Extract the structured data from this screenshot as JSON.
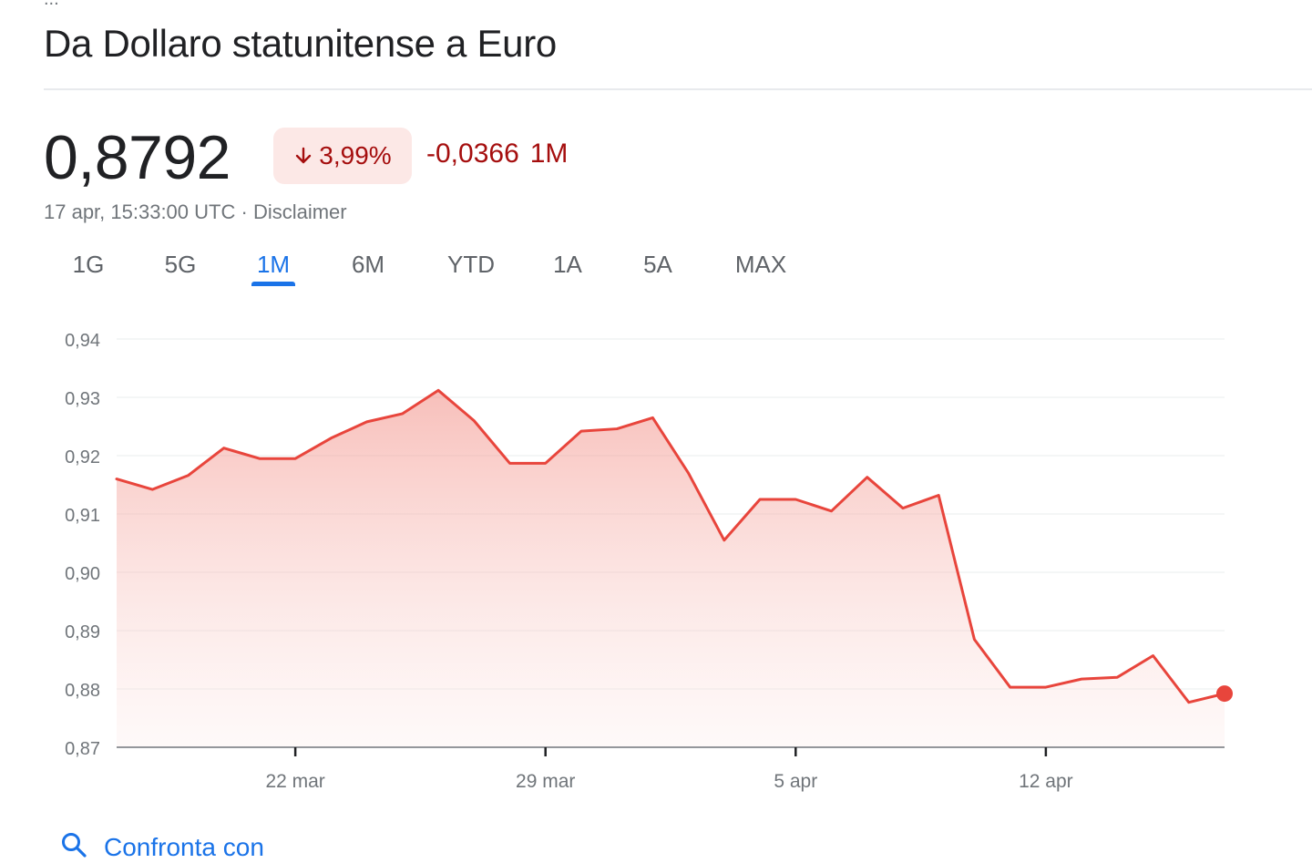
{
  "page": {
    "title": "Da Dollaro statunitense a Euro",
    "top_fragment": "..."
  },
  "quote": {
    "price": "0,8792",
    "change_percent": "3,99%",
    "change_direction": "down",
    "change_absolute": "-0,0366",
    "period": "1M",
    "timestamp": "17 apr, 15:33:00 UTC",
    "separator": "·",
    "disclaimer": "Disclaimer"
  },
  "tabs": [
    {
      "label": "1G",
      "active": false
    },
    {
      "label": "5G",
      "active": false
    },
    {
      "label": "1M",
      "active": true
    },
    {
      "label": "6M",
      "active": false
    },
    {
      "label": "YTD",
      "active": false
    },
    {
      "label": "1A",
      "active": false
    },
    {
      "label": "5A",
      "active": false
    },
    {
      "label": "MAX",
      "active": false
    }
  ],
  "compare": {
    "label": "Confronta con",
    "icon": "search-icon"
  },
  "colors": {
    "accent": "#1a73e8",
    "negative": "#a50e0e",
    "line": "#e8453c",
    "pill_bg": "#fce8e6"
  },
  "chart_data": {
    "type": "area",
    "title": "",
    "xlabel": "",
    "ylabel": "",
    "ylim": [
      0.87,
      0.94
    ],
    "y_ticks": [
      "0,94",
      "0,93",
      "0,92",
      "0,91",
      "0,90",
      "0,89",
      "0,88",
      "0,87"
    ],
    "y_tick_values": [
      0.94,
      0.93,
      0.92,
      0.91,
      0.9,
      0.89,
      0.88,
      0.87
    ],
    "x_ticks": [
      {
        "label": "22 mar",
        "index": 5
      },
      {
        "label": "29 mar",
        "index": 12
      },
      {
        "label": "5 apr",
        "index": 19
      },
      {
        "label": "12 apr",
        "index": 26
      }
    ],
    "grid": true,
    "series": [
      {
        "values": [
          0.916,
          0.9142,
          0.9166,
          0.9213,
          0.9195,
          0.9195,
          0.923,
          0.9258,
          0.9272,
          0.9312,
          0.926,
          0.9187,
          0.9187,
          0.9242,
          0.9246,
          0.9265,
          0.917,
          0.9055,
          0.9125,
          0.9125,
          0.9105,
          0.9163,
          0.911,
          0.9132,
          0.8885,
          0.8803,
          0.8803,
          0.8817,
          0.882,
          0.8857,
          0.8777,
          0.8792
        ]
      }
    ]
  }
}
